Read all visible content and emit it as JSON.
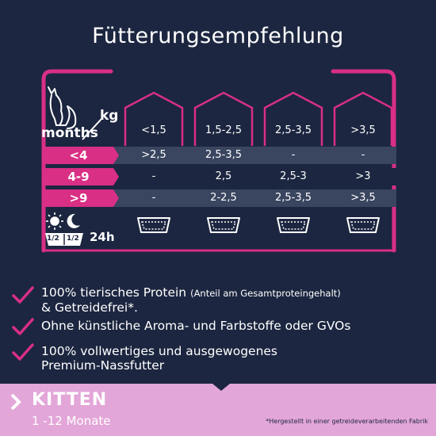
{
  "title": "Fütterungsempfehlung",
  "table": {
    "unit_label": "kg",
    "age_label": "months",
    "weight_columns": [
      "<1,5",
      "1,5-2,5",
      "2,5-3,5",
      ">3,5"
    ],
    "rows": [
      {
        "age": "<4",
        "values": [
          ">2,5",
          "2,5-3,5",
          "-",
          "-"
        ]
      },
      {
        "age": "4-9",
        "values": [
          "-",
          "2,5",
          "2,5-3",
          ">3"
        ]
      },
      {
        "age": ">9",
        "values": [
          "-",
          "2-2,5",
          "2,5-3,5",
          ">3,5"
        ]
      }
    ],
    "split_left": "1/2",
    "split_right": "1/2",
    "period": "24h"
  },
  "bullets": [
    {
      "main": "100% tierisches Protein",
      "note": "(Anteil am Gesamtproteingehalt)",
      "line2": "& Getreidefrei*."
    },
    {
      "main": "Ohne künstliche Aroma- und Farbstoffe oder GVOs"
    },
    {
      "main": "100% vollwertiges und ausgewogenes",
      "line2": "Premium-Nassfutter"
    }
  ],
  "footer": {
    "title": "KITTEN",
    "subtitle": "1 -12 Monate",
    "footnote": "*Hergestellt in einer getreideverarbeitenden Fabrik"
  },
  "colors": {
    "background": "#1c2640",
    "accent": "#d92f84",
    "row_highlight": "#3a4560",
    "footer_bg": "#e3a6d8"
  },
  "icons": [
    "cat-icon",
    "sun-icon",
    "moon-icon",
    "tray-icon",
    "checkmark-icon",
    "chevron-right-icon"
  ]
}
